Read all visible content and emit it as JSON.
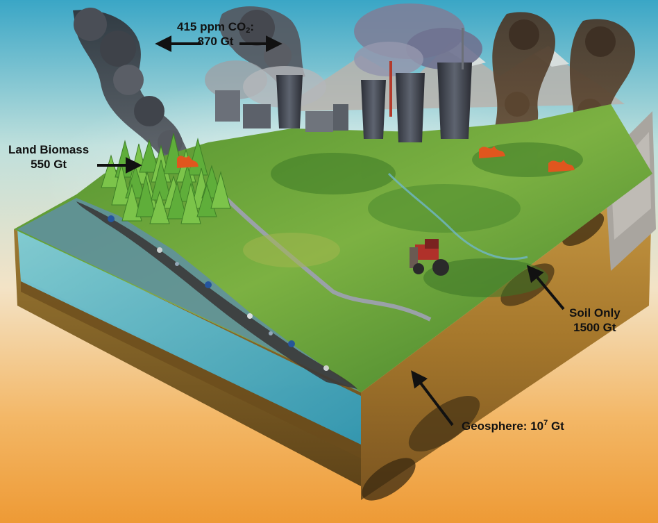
{
  "labels": {
    "atmosphere": {
      "line1_prefix": "415 ppm CO",
      "line1_subscript": "2",
      "line1_suffix": ":",
      "line2": "870 Gt"
    },
    "land_biomass": {
      "line1": "Land Biomass",
      "line2": "550 Gt"
    },
    "soil": {
      "line1": "Soil Only",
      "line2": "1500 Gt"
    },
    "geosphere": {
      "prefix": "Geosphere: 10",
      "superscript": "7",
      "suffix": " Gt"
    }
  },
  "colors": {
    "sky_top": "#3fa9c9",
    "sky_mid": "#e9e4cf",
    "sky_bottom": "#f0a13c",
    "grass": "#6aa53a",
    "water": "#4fc3d9",
    "soil": "#b98a3a",
    "smoke": "#3c3f45",
    "fire": "#e0561e",
    "arrow": "#111111"
  }
}
